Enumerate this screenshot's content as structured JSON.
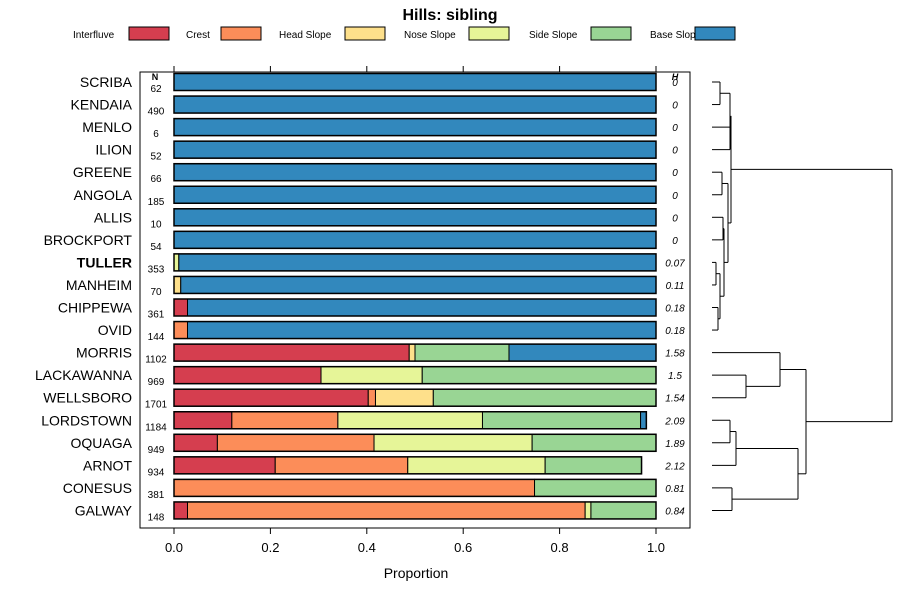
{
  "chart_data": {
    "type": "bar",
    "stacked": true,
    "orientation": "horizontal",
    "title": "Hills: sibling",
    "xlabel": "Proportion",
    "ylabel": "",
    "xlim": [
      0,
      1
    ],
    "xticks": [
      "0.0",
      "0.2",
      "0.4",
      "0.6",
      "0.8",
      "1.0"
    ],
    "n_header": "N",
    "h_header": "H",
    "legend": [
      {
        "name": "Interfluve",
        "color": "#D53E4F"
      },
      {
        "name": "Crest",
        "color": "#FC8D59"
      },
      {
        "name": "Head Slope",
        "color": "#FEE08B"
      },
      {
        "name": "Nose Slope",
        "color": "#E6F598"
      },
      {
        "name": "Side Slope",
        "color": "#99D594"
      },
      {
        "name": "Base Slope",
        "color": "#3288BD"
      }
    ],
    "rows": [
      {
        "label": "SCRIBA",
        "n": "62",
        "h": "0",
        "bold": false,
        "values": [
          0,
          0,
          0,
          0,
          0,
          1.0
        ]
      },
      {
        "label": "KENDAIA",
        "n": "490",
        "h": "0",
        "bold": false,
        "values": [
          0,
          0,
          0,
          0,
          0,
          1.0
        ]
      },
      {
        "label": "MENLO",
        "n": "6",
        "h": "0",
        "bold": false,
        "values": [
          0,
          0,
          0,
          0,
          0,
          1.0
        ]
      },
      {
        "label": "ILION",
        "n": "52",
        "h": "0",
        "bold": false,
        "values": [
          0,
          0,
          0,
          0,
          0,
          1.0
        ]
      },
      {
        "label": "GREENE",
        "n": "66",
        "h": "0",
        "bold": false,
        "values": [
          0,
          0,
          0,
          0,
          0,
          1.0
        ]
      },
      {
        "label": "ANGOLA",
        "n": "185",
        "h": "0",
        "bold": false,
        "values": [
          0,
          0,
          0,
          0,
          0,
          1.0
        ]
      },
      {
        "label": "ALLIS",
        "n": "10",
        "h": "0",
        "bold": false,
        "values": [
          0,
          0,
          0,
          0,
          0,
          1.0
        ]
      },
      {
        "label": "BROCKPORT",
        "n": "54",
        "h": "0",
        "bold": false,
        "values": [
          0,
          0,
          0,
          0,
          0,
          1.0
        ]
      },
      {
        "label": "TULLER",
        "n": "353",
        "h": "0.07",
        "bold": true,
        "values": [
          0,
          0,
          0,
          0.01,
          0,
          0.99
        ]
      },
      {
        "label": "MANHEIM",
        "n": "70",
        "h": "0.11",
        "bold": false,
        "values": [
          0,
          0,
          0.014,
          0,
          0,
          0.986
        ]
      },
      {
        "label": "CHIPPEWA",
        "n": "361",
        "h": "0.18",
        "bold": false,
        "values": [
          0.028,
          0,
          0,
          0,
          0,
          0.972
        ]
      },
      {
        "label": "OVID",
        "n": "144",
        "h": "0.18",
        "bold": false,
        "values": [
          0,
          0.028,
          0,
          0,
          0,
          0.972
        ]
      },
      {
        "label": "MORRIS",
        "n": "1102",
        "h": "1.58",
        "bold": false,
        "values": [
          0.488,
          0,
          0.012,
          0,
          0.195,
          0.305
        ]
      },
      {
        "label": "LACKAWANNA",
        "n": "969",
        "h": "1.5",
        "bold": false,
        "values": [
          0.305,
          0,
          0,
          0.21,
          0.485,
          0
        ]
      },
      {
        "label": "WELLSBORO",
        "n": "1701",
        "h": "1.54",
        "bold": false,
        "values": [
          0.403,
          0.015,
          0.12,
          0,
          0.462,
          0
        ]
      },
      {
        "label": "LORDSTOWN",
        "n": "1184",
        "h": "2.09",
        "bold": false,
        "values": [
          0.12,
          0.22,
          0,
          0.3,
          0.328,
          0.012
        ]
      },
      {
        "label": "OQUAGA",
        "n": "949",
        "h": "1.89",
        "bold": false,
        "values": [
          0.09,
          0.325,
          0,
          0.328,
          0.257,
          0
        ]
      },
      {
        "label": "ARNOT",
        "n": "934",
        "h": "2.12",
        "bold": false,
        "values": [
          0.21,
          0.275,
          0,
          0.285,
          0.2,
          0
        ]
      },
      {
        "label": "CONESUS",
        "n": "381",
        "h": "0.81",
        "bold": false,
        "values": [
          0,
          0.748,
          0,
          0,
          0.252,
          0
        ]
      },
      {
        "label": "GALWAY",
        "n": "148",
        "h": "0.84",
        "bold": false,
        "values": [
          0.028,
          0.825,
          0,
          0.012,
          0.135,
          0
        ]
      }
    ]
  }
}
